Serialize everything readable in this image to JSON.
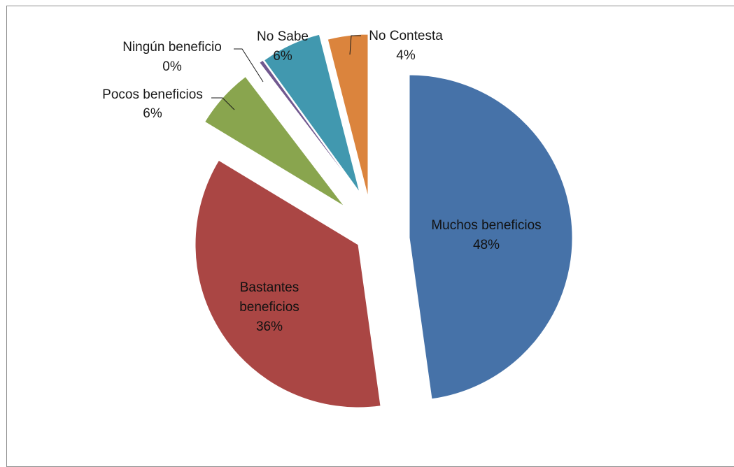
{
  "chart_data": {
    "type": "pie",
    "title": "",
    "exploded": true,
    "slices": [
      {
        "label": "Muchos beneficios",
        "value": 48,
        "display": "48%",
        "color": "#4672A8",
        "label_position": "inside"
      },
      {
        "label": "Bastantes beneficios",
        "value": 36,
        "display": "36%",
        "color": "#AA4644",
        "label_position": "inside"
      },
      {
        "label": "Pocos beneficios",
        "value": 6,
        "display": "6%",
        "color": "#89A54E",
        "label_position": "outside"
      },
      {
        "label": "Ningún beneficio",
        "value": 0,
        "display": "0%",
        "color": "#71588F",
        "label_position": "outside"
      },
      {
        "label": "No Sabe",
        "value": 6,
        "display": "6%",
        "color": "#4198AF",
        "label_position": "outside"
      },
      {
        "label": "No Contesta",
        "value": 4,
        "display": "4%",
        "color": "#DB843D",
        "label_position": "outside"
      }
    ]
  }
}
